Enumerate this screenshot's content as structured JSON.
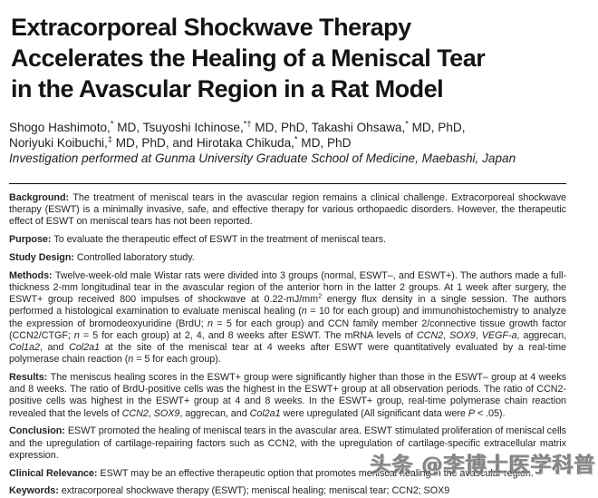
{
  "article": {
    "title_lines": [
      "Extracorporeal Shockwave Therapy",
      "Accelerates the Healing of a Meniscal Tear",
      "in the Avascular Region in a Rat Model"
    ],
    "author_lines": [
      {
        "runs": [
          {
            "t": "Shogo Hashimoto,"
          },
          {
            "t": "*",
            "sup": true
          },
          {
            "t": " MD, Tsuyoshi Ichinose,"
          },
          {
            "t": "*†",
            "sup": true
          },
          {
            "t": " MD, PhD, Takashi Ohsawa,"
          },
          {
            "t": "*",
            "sup": true
          },
          {
            "t": " MD, PhD,"
          }
        ]
      },
      {
        "runs": [
          {
            "t": "Noriyuki Koibuchi,"
          },
          {
            "t": "‡",
            "sup": true
          },
          {
            "t": " MD, PhD, and Hirotaka Chikuda,"
          },
          {
            "t": "*",
            "sup": true
          },
          {
            "t": " MD, PhD"
          }
        ]
      }
    ],
    "affiliation": "Investigation performed at Gunma University Graduate School of Medicine, Maebashi, Japan",
    "sections": [
      {
        "name": "background",
        "runs": [
          {
            "t": "Background: ",
            "b": true
          },
          {
            "t": "The treatment of meniscal tears in the avascular region remains a clinical challenge. Extracorporeal shockwave therapy (ESWT) is a minimally invasive, safe, and effective therapy for various orthopaedic disorders. However, the therapeutic effect of ESWT on meniscal tears has not been reported."
          }
        ]
      },
      {
        "name": "purpose",
        "runs": [
          {
            "t": "Purpose: ",
            "b": true
          },
          {
            "t": "To evaluate the therapeutic effect of ESWT in the treatment of meniscal tears."
          }
        ]
      },
      {
        "name": "study-design",
        "runs": [
          {
            "t": "Study Design: ",
            "b": true
          },
          {
            "t": "Controlled laboratory study."
          }
        ]
      },
      {
        "name": "methods",
        "runs": [
          {
            "t": "Methods: ",
            "b": true
          },
          {
            "t": "Twelve-week-old male Wistar rats were divided into 3 groups (normal, ESWT–, and ESWT+). The authors made a full-thickness 2-mm longitudinal tear in the avascular region of the anterior horn in the latter 2 groups. At 1 week after surgery, the ESWT+ group received 800 impulses of shockwave at 0.22-mJ/mm"
          },
          {
            "t": "2",
            "sup": true
          },
          {
            "t": " energy flux density in a single session. The authors performed a histological examination to evaluate meniscal healing ("
          },
          {
            "t": "n",
            "i": true
          },
          {
            "t": " = 10 for each group) and immunohistochemistry to analyze the expression of bromodeoxyuridine (BrdU; "
          },
          {
            "t": "n",
            "i": true
          },
          {
            "t": " = 5 for each group) and CCN family member 2/connective tissue growth factor (CCN2/CTGF; "
          },
          {
            "t": "n",
            "i": true
          },
          {
            "t": " = 5 for each group) at 2, 4, and 8 weeks after ESWT. The mRNA levels of "
          },
          {
            "t": "CCN2",
            "i": true
          },
          {
            "t": ", "
          },
          {
            "t": "SOX9",
            "i": true
          },
          {
            "t": ", "
          },
          {
            "t": "VEGF-a",
            "i": true
          },
          {
            "t": ", aggrecan, "
          },
          {
            "t": "Col1a2",
            "i": true
          },
          {
            "t": ", and "
          },
          {
            "t": "Col2a1",
            "i": true
          },
          {
            "t": " at the site of the meniscal tear at 4 weeks after ESWT were quantitatively evaluated by a real-time polymerase chain reaction ("
          },
          {
            "t": "n",
            "i": true
          },
          {
            "t": " = 5 for each group)."
          }
        ]
      },
      {
        "name": "results",
        "runs": [
          {
            "t": "Results: ",
            "b": true
          },
          {
            "t": "The meniscus healing scores in the ESWT+ group were significantly higher than those in the ESWT– group at 4 weeks and 8 weeks. The ratio of BrdU-positive cells was the highest in the ESWT+ group at all observation periods. The ratio of CCN2-positive cells was highest in the ESWT+ group at 4 and 8 weeks. In the ESWT+ group, real-time polymerase chain reaction revealed that the levels of "
          },
          {
            "t": "CCN2",
            "i": true
          },
          {
            "t": ", "
          },
          {
            "t": "SOX9",
            "i": true
          },
          {
            "t": ", aggrecan, and "
          },
          {
            "t": "Col2a1",
            "i": true
          },
          {
            "t": " were upregulated (All significant data were "
          },
          {
            "t": "P",
            "i": true
          },
          {
            "t": " < .05)."
          }
        ]
      },
      {
        "name": "conclusion",
        "runs": [
          {
            "t": "Conclusion: ",
            "b": true
          },
          {
            "t": "ESWT promoted the healing of meniscal tears in the avascular area. ESWT stimulated proliferation of meniscal cells and the upregulation of cartilage-repairing factors such as CCN2, with the upregulation of cartilage-specific extracellular matrix expression."
          }
        ]
      },
      {
        "name": "clinical-relevance",
        "runs": [
          {
            "t": "Clinical Relevance: ",
            "b": true
          },
          {
            "t": "ESWT may be an effective therapeutic option that promotes meniscal healing in the avascular region."
          }
        ]
      },
      {
        "name": "keywords",
        "runs": [
          {
            "t": "Keywords: ",
            "b": true
          },
          {
            "t": "extracorporeal shockwave therapy (ESWT); meniscal healing; meniscal tear; CCN2; SOX9"
          }
        ]
      }
    ]
  },
  "watermark": {
    "text": "头条 @李博士医学科普",
    "color": "#787878"
  }
}
